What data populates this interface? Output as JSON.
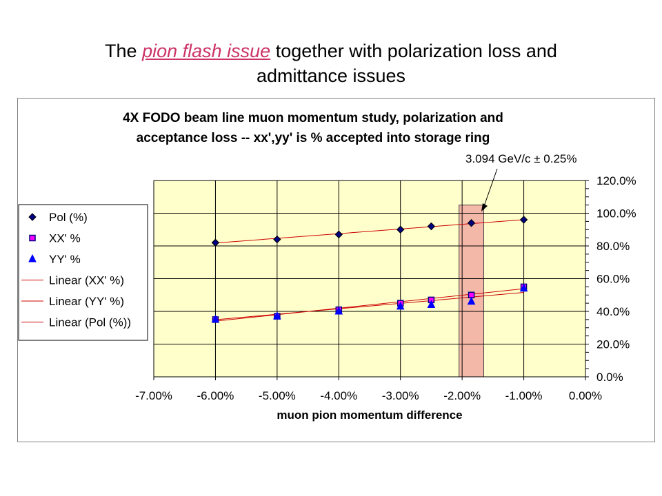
{
  "slide": {
    "title_prefix": "The ",
    "title_link": "pion flash issue",
    "title_suffix_line1": " together with polarization loss and",
    "title_line2": "admittance issues"
  },
  "colors": {
    "plot_bg": "#ffffcc",
    "highlight": "#f4b8a8",
    "trend": "#cc0000",
    "pol": "#000080",
    "xx": "#ff00ff",
    "yy": "#0000ff",
    "link": "#cc3366"
  },
  "chart_data": {
    "type": "scatter",
    "title_line1": "4X FODO beam line muon momentum study, polarization and",
    "title_line2": "acceptance loss -- xx',yy' is % accepted into storage ring",
    "xlabel": "muon pion momentum difference",
    "ylabel": "",
    "xlim": [
      -0.07,
      0.0
    ],
    "ylim": [
      0.0,
      1.2
    ],
    "x_ticks": [
      "-7.00%",
      "-6.00%",
      "-5.00%",
      "-4.00%",
      "-3.00%",
      "-2.00%",
      "-1.00%",
      "0.00%"
    ],
    "y_ticks": [
      "0.0%",
      "20.0%",
      "40.0%",
      "60.0%",
      "80.0%",
      "100.0%",
      "120.0%"
    ],
    "grid": "horizontal",
    "legend_position": "left",
    "annotation": {
      "text": "3.094 GeV/c ± 0.25%",
      "x_range": [
        -0.0205,
        -0.0165
      ],
      "y_range": [
        0.0,
        1.05
      ]
    },
    "x": [
      -0.06,
      -0.05,
      -0.04,
      -0.03,
      -0.025,
      -0.0185,
      -0.01
    ],
    "series": [
      {
        "name": "Pol (%)",
        "marker": "diamond",
        "values": [
          0.82,
          0.84,
          0.87,
          0.9,
          0.92,
          0.94,
          0.96
        ]
      },
      {
        "name": "XX' %",
        "marker": "square",
        "values": [
          0.35,
          0.37,
          0.41,
          0.45,
          0.47,
          0.5,
          0.55
        ]
      },
      {
        "name": "YY' %",
        "marker": "triangle",
        "values": [
          0.35,
          0.37,
          0.4,
          0.43,
          0.44,
          0.46,
          0.54
        ]
      }
    ],
    "trendlines": [
      {
        "name": "Linear (XX' %)",
        "slope": 3.96,
        "intercept": 0.578
      },
      {
        "name": "Linear (YY' %)",
        "slope": 3.33,
        "intercept": 0.549
      },
      {
        "name": "Linear (Pol (%))",
        "slope": 2.85,
        "intercept": 0.989
      }
    ]
  }
}
